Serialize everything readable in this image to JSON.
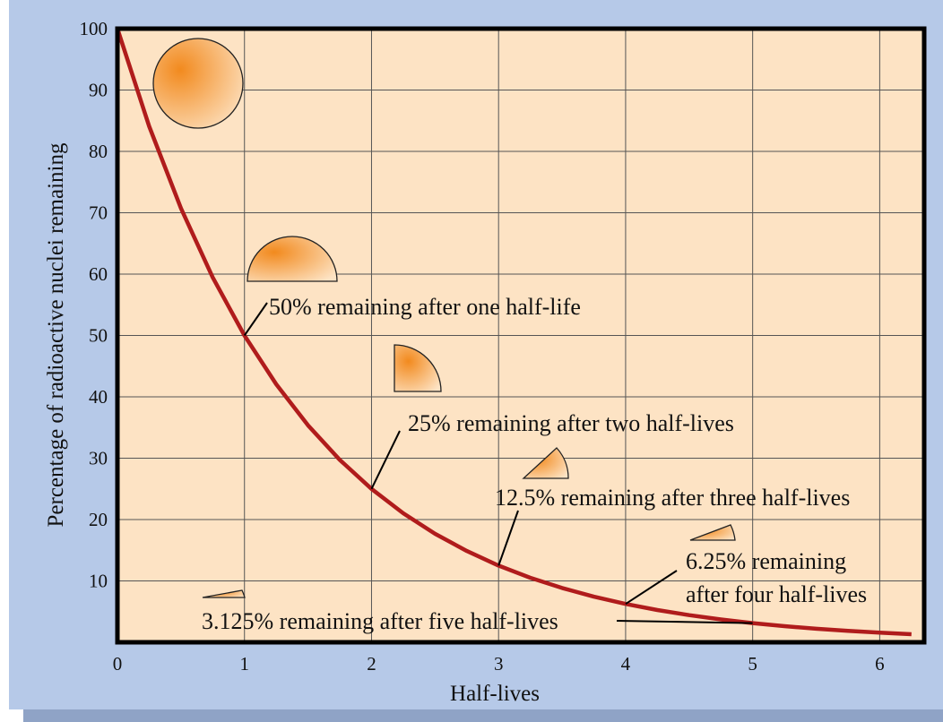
{
  "chart_data": {
    "type": "line",
    "xlabel": "Half-lives",
    "ylabel": "Percentage of radioactive nuclei remaining",
    "x": [
      0,
      0.25,
      0.5,
      0.75,
      1,
      1.25,
      1.5,
      1.75,
      2,
      2.25,
      2.5,
      2.75,
      3,
      3.25,
      3.5,
      3.75,
      4,
      4.25,
      4.5,
      4.75,
      5,
      5.25,
      5.5,
      5.75,
      6,
      6.25
    ],
    "series": [
      {
        "color": "#b01c1c",
        "values": [
          100,
          84.09,
          70.71,
          59.46,
          50,
          42.04,
          35.36,
          29.73,
          25,
          21.02,
          17.68,
          14.87,
          12.5,
          10.51,
          8.84,
          7.43,
          6.25,
          5.26,
          4.42,
          3.72,
          3.125,
          2.63,
          2.21,
          1.86,
          1.56,
          1.31
        ]
      }
    ],
    "xlim": [
      0,
      6.35
    ],
    "ylim": [
      0,
      100
    ],
    "xticks": [
      0,
      1,
      2,
      3,
      4,
      5,
      6
    ],
    "yticks": [
      10,
      20,
      30,
      40,
      50,
      60,
      70,
      80,
      90,
      100
    ],
    "grid": true,
    "annotations": [
      [
        "50% remaining after one half-life"
      ],
      [
        "25% remaining after two half-lives"
      ],
      [
        "12.5% remaining after three half-lives"
      ],
      [
        "6.25% remaining",
        "after four half-lives"
      ],
      [
        "3.125% remaining after five half-lives"
      ]
    ]
  }
}
